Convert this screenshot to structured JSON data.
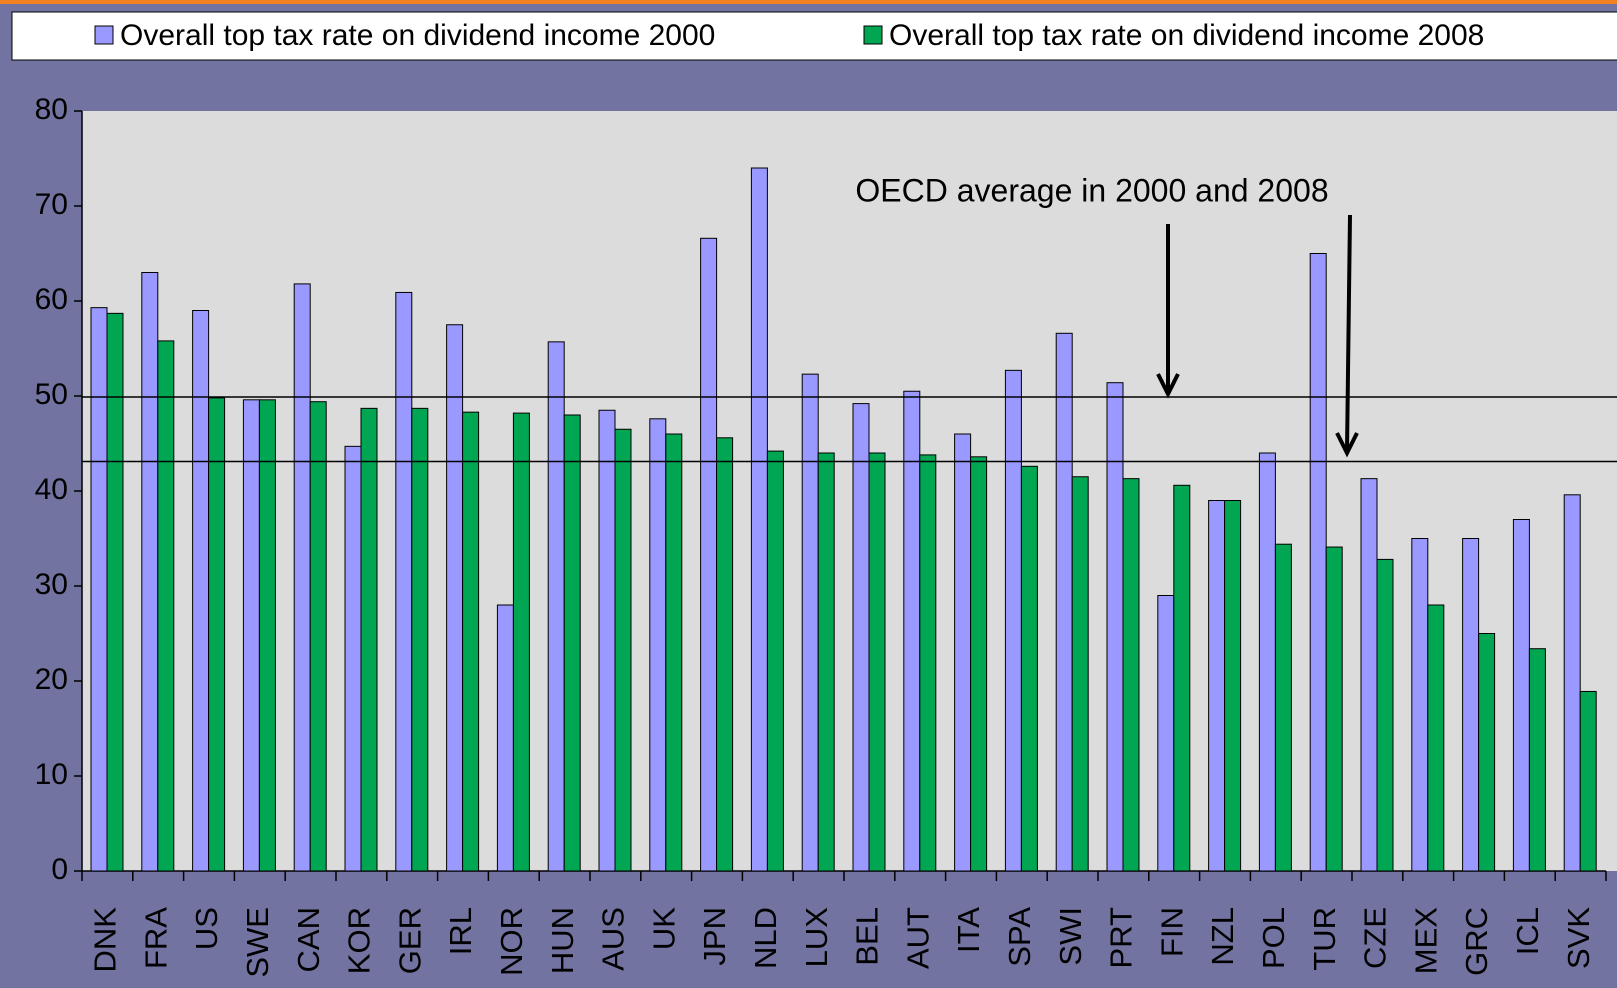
{
  "chart_data": {
    "type": "bar",
    "annotation": "OECD average in 2000 and 2008",
    "categories": [
      "DNK",
      "FRA",
      "US",
      "SWE",
      "CAN",
      "KOR",
      "GER",
      "IRL",
      "NOR",
      "HUN",
      "AUS",
      "UK",
      "JPN",
      "NLD",
      "LUX",
      "BEL",
      "AUT",
      "ITA",
      "SPA",
      "SWI",
      "PRT",
      "FIN",
      "NZL",
      "POL",
      "TUR",
      "CZE",
      "MEX",
      "GRC",
      "ICL",
      "SVK"
    ],
    "series": [
      {
        "name": "Overall top tax rate on dividend income 2000",
        "color": "#9999ff",
        "values": [
          59.3,
          63,
          59,
          49.6,
          61.8,
          44.7,
          60.9,
          57.5,
          28,
          55.7,
          48.5,
          47.6,
          66.6,
          74,
          52.3,
          49.2,
          50.5,
          46,
          52.7,
          56.6,
          51.4,
          29,
          39,
          44,
          65,
          41.3,
          35,
          35,
          37,
          39.6
        ]
      },
      {
        "name": "Overall top tax rate on dividend income 2008",
        "color": "#00a651",
        "values": [
          58.7,
          55.8,
          49.8,
          49.6,
          49.4,
          48.7,
          48.7,
          48.3,
          48.2,
          48,
          46.5,
          46,
          45.6,
          44.2,
          44,
          44,
          43.8,
          43.6,
          42.6,
          41.5,
          41.3,
          40.6,
          39,
          34.4,
          34.1,
          32.8,
          28,
          25,
          23.4,
          18.9
        ]
      }
    ],
    "reference_lines": [
      49.9,
      43.1
    ],
    "ylim": [
      0,
      80
    ],
    "yticks": [
      0,
      10,
      20,
      30,
      40,
      50,
      60,
      70,
      80
    ],
    "grid": false
  }
}
